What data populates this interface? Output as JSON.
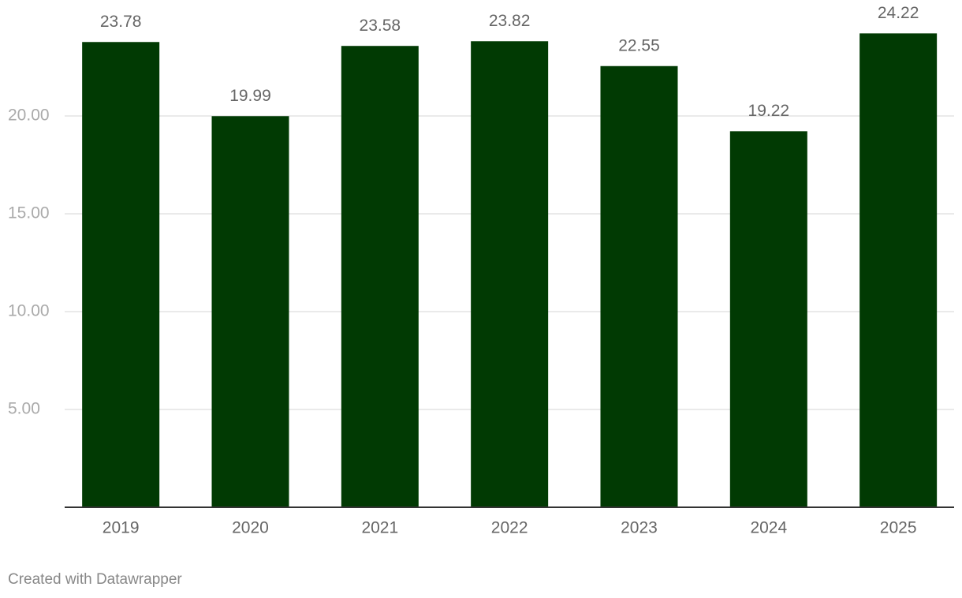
{
  "chart_data": {
    "type": "bar",
    "categories": [
      "2019",
      "2020",
      "2021",
      "2022",
      "2023",
      "2024",
      "2025"
    ],
    "values": [
      23.78,
      19.99,
      23.58,
      23.82,
      22.55,
      19.22,
      24.22
    ],
    "color": "#013a03",
    "ylim": [
      0,
      25
    ],
    "yticks": [
      {
        "value": 5,
        "label": "5.00"
      },
      {
        "value": 10,
        "label": "10.00"
      },
      {
        "value": 15,
        "label": "15.00"
      },
      {
        "value": 20,
        "label": "20.00"
      }
    ],
    "grid": true,
    "credit": "Created with Datawrapper"
  }
}
